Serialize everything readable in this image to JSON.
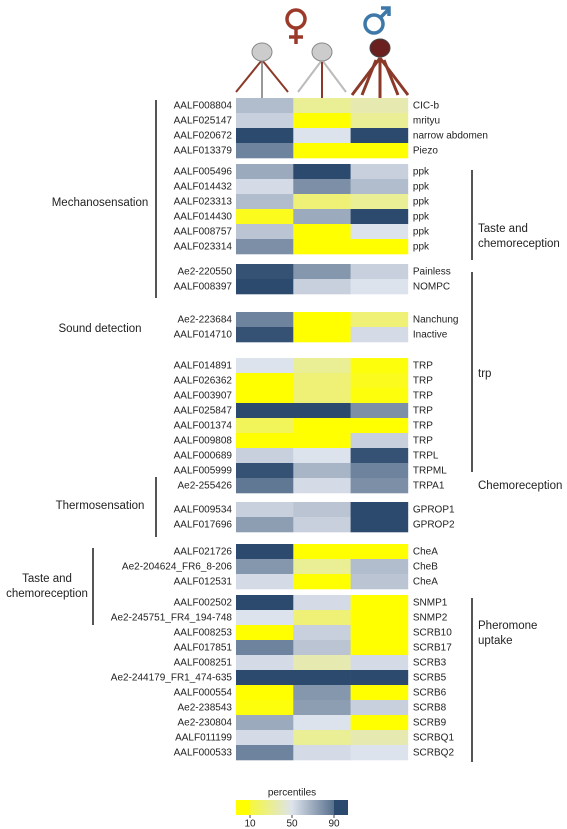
{
  "chart_data": {
    "type": "heatmap",
    "row_ids": [
      "AALF008804",
      "AALF025147",
      "AALF020672",
      "AALF013379",
      "AALF005496",
      "AALF014432",
      "AALF023313",
      "AALF014430",
      "AALF008757",
      "AALF023314",
      "Ae2-220550",
      "AALF008397",
      "Ae2-223684",
      "AALF014710",
      "AALF014891",
      "AALF026362",
      "AALF003907",
      "AALF025847",
      "AALF001374",
      "AALF009808",
      "AALF000689",
      "AALF005999",
      "Ae2-255426",
      "AALF009534",
      "AALF017696",
      "AALF021726",
      "Ae2-204624_FR6_8-206",
      "AALF012531",
      "AALF002502",
      "Ae2-245751_FR4_194-748",
      "AALF008253",
      "AALF017851",
      "AALF008251",
      "Ae2-244179_FR1_474-635",
      "AALF000554",
      "Ae2-238543",
      "Ae2-230804",
      "AALF011199",
      "AALF000533"
    ],
    "row_names": [
      "CIC-b",
      "mrityu",
      "narrow abdomen",
      "Piezo",
      "ppk",
      "ppk",
      "ppk",
      "ppk",
      "ppk",
      "ppk",
      "Painless",
      "NOMPC",
      "Nanchung",
      "Inactive",
      "TRP",
      "TRP",
      "TRP",
      "TRP",
      "TRP",
      "TRP",
      "TRPL",
      "TRPML",
      "TRPA1",
      "GPROP1",
      "GPROP2",
      "CheA",
      "CheB",
      "CheA",
      "SNMP1",
      "SNMP2",
      "SCRB10",
      "SCRB17",
      "SCRB3",
      "SCRB5",
      "SCRB6",
      "SCRB8",
      "SCRB9",
      "SCRBQ1",
      "SCRBQ2"
    ],
    "values": [
      [
        60,
        35,
        40
      ],
      [
        55,
        10,
        35
      ],
      [
        90,
        50,
        90
      ],
      [
        75,
        10,
        10
      ],
      [
        65,
        90,
        55
      ],
      [
        52,
        72,
        60
      ],
      [
        60,
        30,
        35
      ],
      [
        15,
        65,
        90
      ],
      [
        58,
        10,
        50
      ],
      [
        72,
        10,
        10
      ],
      [
        88,
        70,
        55
      ],
      [
        90,
        55,
        50
      ],
      [
        75,
        10,
        30
      ],
      [
        88,
        10,
        52
      ],
      [
        50,
        35,
        12
      ],
      [
        10,
        30,
        15
      ],
      [
        10,
        30,
        12
      ],
      [
        90,
        90,
        72
      ],
      [
        25,
        10,
        10
      ],
      [
        10,
        10,
        55
      ],
      [
        55,
        50,
        88
      ],
      [
        88,
        62,
        75
      ],
      [
        78,
        52,
        72
      ],
      [
        55,
        58,
        90
      ],
      [
        68,
        55,
        90
      ],
      [
        90,
        10,
        10
      ],
      [
        70,
        35,
        60
      ],
      [
        52,
        10,
        58
      ],
      [
        90,
        52,
        10
      ],
      [
        50,
        30,
        10
      ],
      [
        10,
        55,
        10
      ],
      [
        75,
        58,
        10
      ],
      [
        52,
        40,
        52
      ],
      [
        90,
        90,
        90
      ],
      [
        10,
        70,
        10
      ],
      [
        12,
        68,
        55
      ],
      [
        65,
        50,
        10
      ],
      [
        52,
        35,
        40
      ],
      [
        75,
        52,
        50
      ]
    ],
    "left_groups": [
      "Mechanosensation",
      "Sound detection",
      "Thermosensation",
      "Taste and chemoreception"
    ],
    "right_groups": [
      "Taste and chemoreception",
      "trp",
      "Chemoreception",
      "Pheromone uptake"
    ],
    "colorbar_title": "percentiles",
    "colorscale": [
      {
        "value": 10,
        "color": "#ffff00"
      },
      {
        "value": 50,
        "color": "#dde3ec"
      },
      {
        "value": 90,
        "color": "#2c4a6e"
      }
    ]
  }
}
